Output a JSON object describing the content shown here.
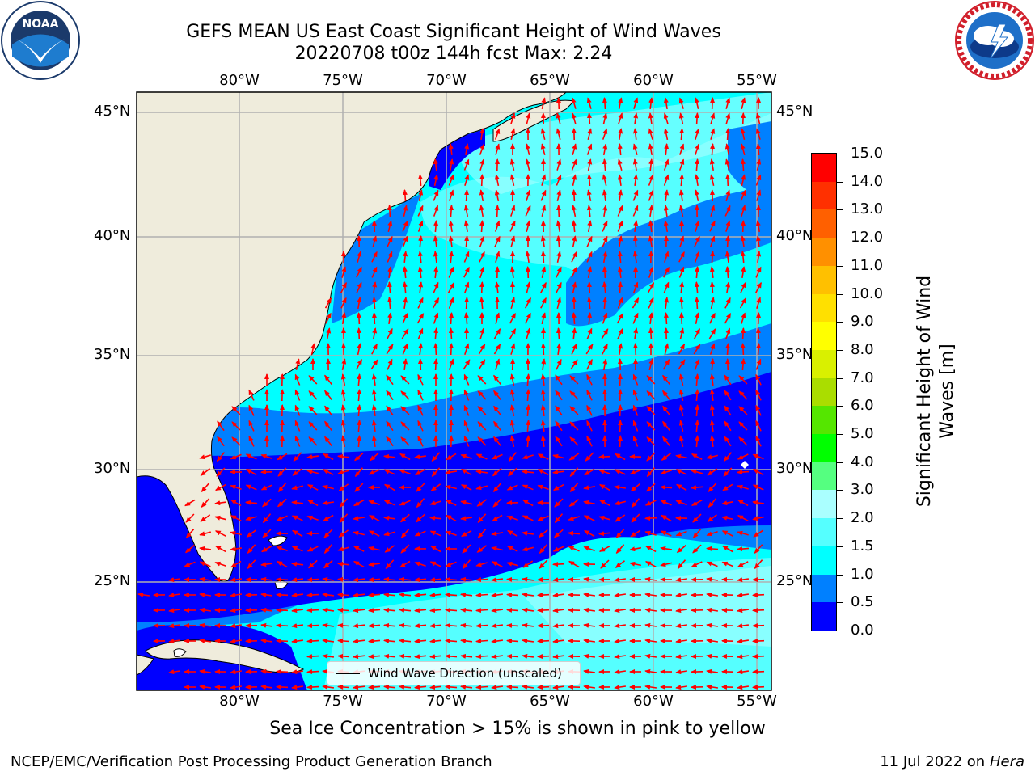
{
  "title_line1": "GEFS MEAN US East Coast Significant Height of Wind Waves",
  "title_line2": "20220708 t00z 144h fcst    Max: 2.24",
  "map": {
    "lon_top_labels": [
      "80°W",
      "75°W",
      "70°W",
      "65°W",
      "60°W",
      "55°W"
    ],
    "lon_bottom_labels": [
      "80°W",
      "75°W",
      "70°W",
      "65°W",
      "60°W",
      "55°W"
    ],
    "lat_left_labels": [
      "45°N",
      "40°N",
      "35°N",
      "30°N",
      "25°N"
    ],
    "lat_right_labels": [
      "45°N",
      "40°N",
      "35°N",
      "30°N",
      "25°N"
    ],
    "land_color": "#efecdc",
    "arrow_color": "#ff0000",
    "legend_label": "Wind Wave Direction (unscaled)"
  },
  "colorbar": {
    "label": "Significant Height of Wind Waves [m]",
    "ticks": [
      "0.0",
      "0.5",
      "1.0",
      "1.5",
      "2.0",
      "3.0",
      "4.0",
      "5.0",
      "6.0",
      "7.0",
      "8.0",
      "9.0",
      "10.0",
      "11.0",
      "12.0",
      "13.0",
      "14.0",
      "15.0"
    ],
    "colors": [
      "#0000ff",
      "#0080ff",
      "#00ffff",
      "#55ffff",
      "#aaffff",
      "#55ff80",
      "#00ff00",
      "#55e600",
      "#aadd00",
      "#d9f000",
      "#ffff00",
      "#ffe000",
      "#ffc000",
      "#ff9000",
      "#ff6000",
      "#ff3000",
      "#ff0000"
    ]
  },
  "caption": "Sea Ice Concentration > 15% is shown in pink to yellow",
  "footer_left": "NCEP/EMC/Verification Post Processing Product Generation Branch",
  "footer_right_date": "11 Jul 2022 on ",
  "footer_right_host": "Hera",
  "logos": {
    "noaa_text": "NOAA",
    "noaa_ring_text": "NATIONAL OCEANIC AND ATMOSPHERIC ADMINISTRATION · U.S. DEPARTMENT OF COMMERCE",
    "nws_ring_text": "NATIONAL WEATHER SERVICE"
  }
}
